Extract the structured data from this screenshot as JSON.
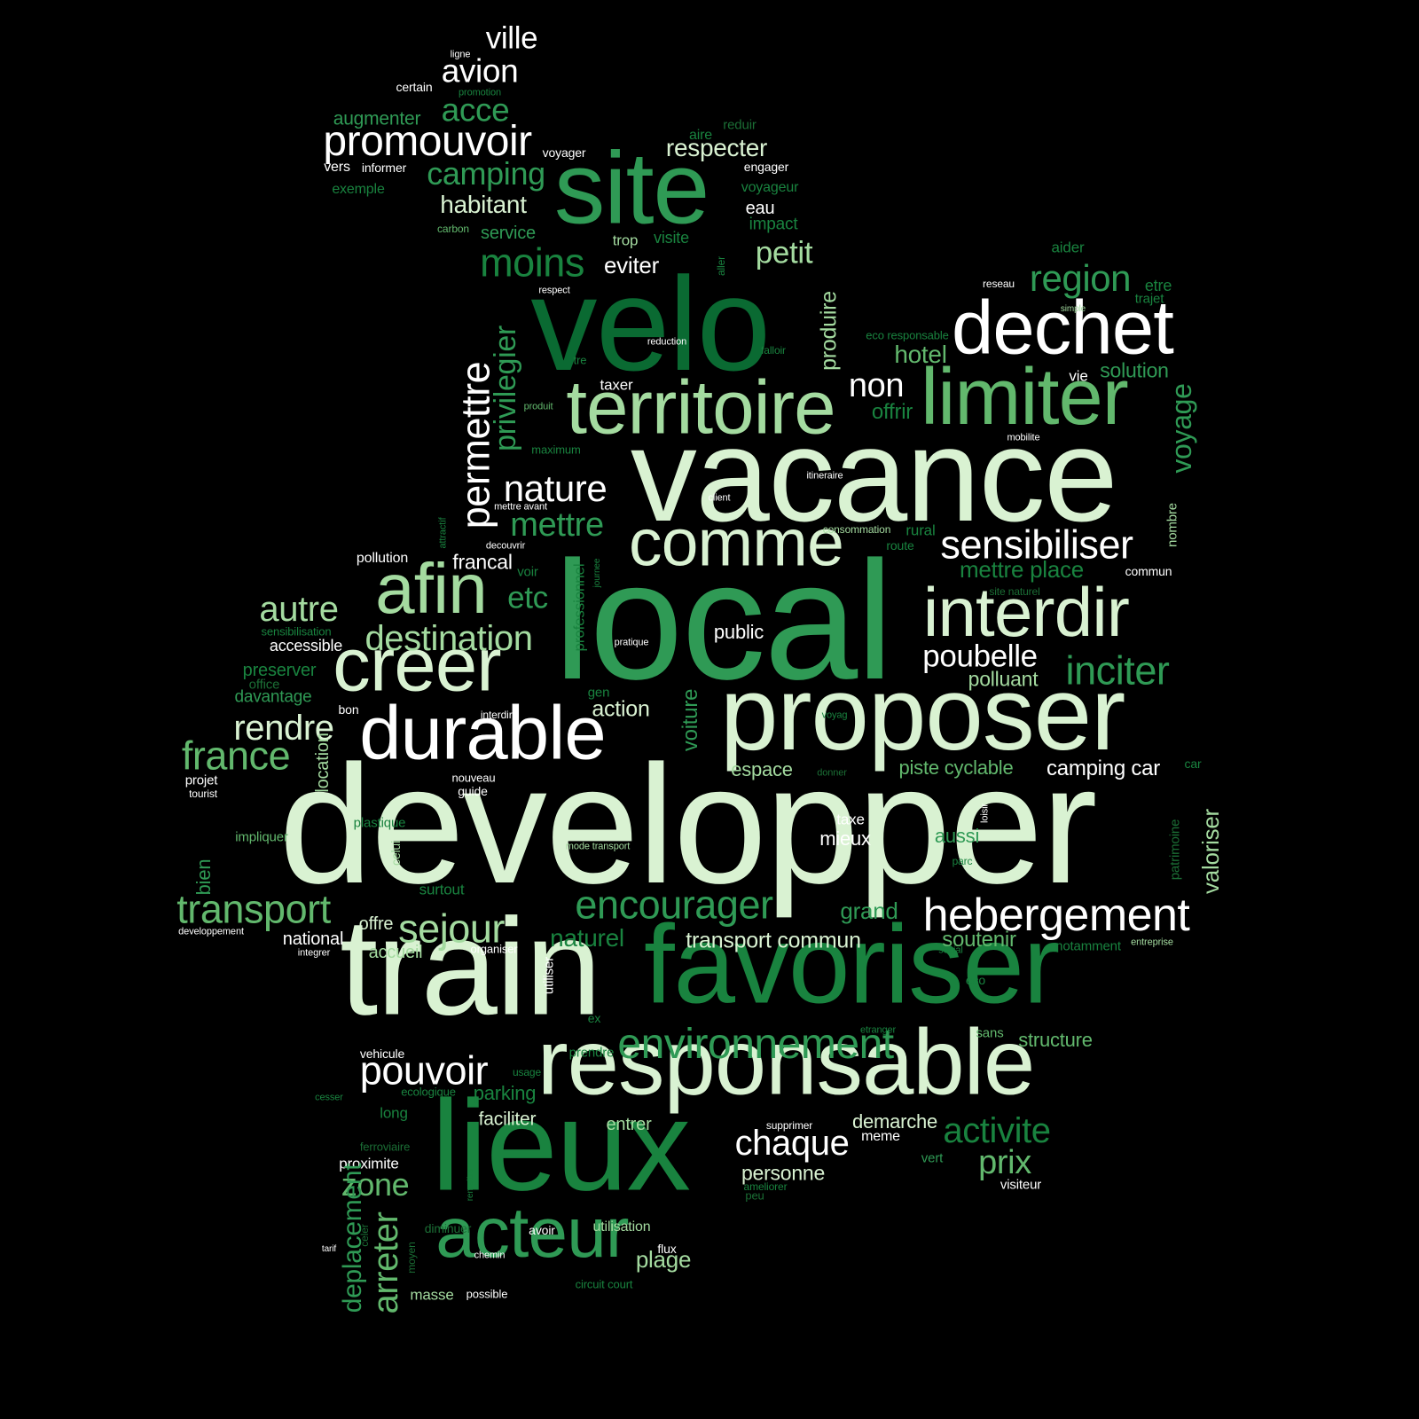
{
  "palette": [
    "#d9f2d2",
    "#ffffff",
    "#a4dba0",
    "#62b86d",
    "#2f9a55",
    "#19833f",
    "#0a6a32",
    "#1b6e35"
  ],
  "words": [
    {
      "t": "developper",
      "c": 0
    },
    {
      "t": "local",
      "c": 4
    },
    {
      "t": "vacance",
      "c": 0
    },
    {
      "t": "train",
      "c": 0
    },
    {
      "t": "velo",
      "c": 6
    },
    {
      "t": "favoriser",
      "c": 5
    },
    {
      "t": "lieux",
      "c": 5
    },
    {
      "t": "proposer",
      "c": 0
    },
    {
      "t": "responsable",
      "c": 0
    },
    {
      "t": "site",
      "c": 4
    },
    {
      "t": "dechet",
      "c": 1
    },
    {
      "t": "limiter",
      "c": 3
    },
    {
      "t": "territoire",
      "c": 2
    },
    {
      "t": "durable",
      "c": 1
    },
    {
      "t": "creer",
      "c": 0
    },
    {
      "t": "afin",
      "c": 2
    },
    {
      "t": "interdir",
      "c": 0
    },
    {
      "t": "comme",
      "c": 0
    },
    {
      "t": "acteur",
      "c": 4
    },
    {
      "t": "hebergement",
      "c": 1
    },
    {
      "t": "promouvoir",
      "c": 1
    },
    {
      "t": "environnement",
      "c": 4
    },
    {
      "t": "encourager",
      "c": 4
    },
    {
      "t": "sensibiliser",
      "c": 1
    },
    {
      "t": "pouvoir",
      "c": 1
    },
    {
      "t": "transport",
      "c": 3
    },
    {
      "t": "sejour",
      "c": 2
    },
    {
      "t": "destination",
      "c": 2
    },
    {
      "t": "inciter",
      "c": 4
    },
    {
      "t": "chaque",
      "c": 1
    },
    {
      "t": "france",
      "c": 3
    },
    {
      "t": "rendre",
      "c": 0
    },
    {
      "t": "autre",
      "c": 2
    },
    {
      "t": "moins",
      "c": 5
    },
    {
      "t": "region",
      "c": 4
    },
    {
      "t": "activite",
      "c": 5
    },
    {
      "t": "prix",
      "c": 3
    },
    {
      "t": "zone",
      "c": 3
    },
    {
      "t": "poubelle",
      "c": 1
    },
    {
      "t": "nature",
      "c": 1
    },
    {
      "t": "petit",
      "c": 2
    },
    {
      "t": "camping",
      "c": 4
    },
    {
      "t": "mettre",
      "c": 4
    },
    {
      "t": "avion",
      "c": 1
    },
    {
      "t": "acce",
      "c": 4
    },
    {
      "t": "ville",
      "c": 1
    },
    {
      "t": "non",
      "c": 1
    },
    {
      "t": "etc",
      "c": 4
    },
    {
      "t": "habitant",
      "c": 0
    },
    {
      "t": "respecter",
      "c": 0
    },
    {
      "t": "plage",
      "c": 2
    },
    {
      "t": "naturel",
      "c": 5
    },
    {
      "t": "transport commun",
      "c": 0
    },
    {
      "t": "hotel",
      "c": 3
    },
    {
      "t": "mettre place",
      "c": 5
    },
    {
      "t": "camping car",
      "c": 1
    },
    {
      "t": "personne",
      "c": 0
    },
    {
      "t": "grand",
      "c": 4
    },
    {
      "t": "soutenir",
      "c": 3
    },
    {
      "t": "structure",
      "c": 3
    },
    {
      "t": "demarche",
      "c": 0
    },
    {
      "t": "eviter",
      "c": 1
    },
    {
      "t": "solution",
      "c": 4
    },
    {
      "t": "action",
      "c": 0
    },
    {
      "t": "polluant",
      "c": 2
    },
    {
      "t": "piste cyclable",
      "c": 3
    },
    {
      "t": "espace",
      "c": 2
    },
    {
      "t": "mieux",
      "c": 1
    },
    {
      "t": "public",
      "c": 1
    },
    {
      "t": "francal",
      "c": 1
    },
    {
      "t": "faciliter",
      "c": 0
    },
    {
      "t": "entrer",
      "c": 2
    },
    {
      "t": "offrir",
      "c": 5
    },
    {
      "t": "parking",
      "c": 5
    },
    {
      "t": "augmenter",
      "c": 4
    },
    {
      "t": "aussi",
      "c": 4
    },
    {
      "t": "accueil",
      "c": 2
    },
    {
      "t": "offre",
      "c": 0
    },
    {
      "t": "national",
      "c": 1
    },
    {
      "t": "davantage",
      "c": 4
    },
    {
      "t": "accessible",
      "c": 1
    },
    {
      "t": "preserver",
      "c": 5
    },
    {
      "t": "service",
      "c": 4
    },
    {
      "t": "eau",
      "c": 1
    },
    {
      "t": "impact",
      "c": 5
    },
    {
      "t": "voyageur",
      "c": 5
    },
    {
      "t": "trop",
      "c": 2
    },
    {
      "t": "visite",
      "c": 5
    },
    {
      "t": "aider",
      "c": 5
    },
    {
      "t": "etre",
      "c": 5
    },
    {
      "t": "trajet",
      "c": 5
    },
    {
      "t": "vie",
      "c": 1
    },
    {
      "t": "taxer",
      "c": 1
    },
    {
      "t": "taxe",
      "c": 1
    },
    {
      "t": "rural",
      "c": 5
    },
    {
      "t": "route",
      "c": 5
    },
    {
      "t": "commun",
      "c": 1
    },
    {
      "t": "surtout",
      "c": 5
    },
    {
      "t": "proximite",
      "c": 1
    },
    {
      "t": "long",
      "c": 5
    },
    {
      "t": "masse",
      "c": 2
    },
    {
      "t": "utilisation",
      "c": 2
    },
    {
      "t": "avoir",
      "c": 1
    },
    {
      "t": "flux",
      "c": 1
    },
    {
      "t": "meme",
      "c": 1
    },
    {
      "t": "vert",
      "c": 4
    },
    {
      "t": "visiteur",
      "c": 1
    },
    {
      "t": "sans",
      "c": 3
    },
    {
      "t": "eco",
      "c": 5
    },
    {
      "t": "notamment",
      "c": 5
    },
    {
      "t": "prendre",
      "c": 5
    },
    {
      "t": "vehicule",
      "c": 1
    },
    {
      "t": "guide",
      "c": 1
    },
    {
      "t": "nouveau",
      "c": 1
    },
    {
      "t": "projet",
      "c": 1
    },
    {
      "t": "impliquer",
      "c": 3
    },
    {
      "t": "vers",
      "c": 1
    },
    {
      "t": "informer",
      "c": 1
    },
    {
      "t": "voyager",
      "c": 1
    },
    {
      "t": "engager",
      "c": 1
    },
    {
      "t": "aire",
      "c": 5
    },
    {
      "t": "reduir",
      "c": 7
    },
    {
      "t": "exemple",
      "c": 5
    },
    {
      "t": "certain",
      "c": 1
    },
    {
      "t": "pollution",
      "c": 1
    },
    {
      "t": "voir",
      "c": 5
    },
    {
      "t": "gen",
      "c": 5
    },
    {
      "t": "bon",
      "c": 1
    },
    {
      "t": "office",
      "c": 7
    },
    {
      "t": "sensibilisation",
      "c": 5
    },
    {
      "t": "interdire",
      "c": 1
    },
    {
      "t": "ligne",
      "c": 1
    },
    {
      "t": "promotion",
      "c": 5
    },
    {
      "t": "carbon",
      "c": 3
    },
    {
      "t": "respect",
      "c": 1
    },
    {
      "t": "tre",
      "c": 5
    },
    {
      "t": "produit",
      "c": 3
    },
    {
      "t": "maximum",
      "c": 5
    },
    {
      "t": "mettre avant",
      "c": 1
    },
    {
      "t": "decouvrir",
      "c": 1
    },
    {
      "t": "reduction",
      "c": 1
    },
    {
      "t": "falloir",
      "c": 5
    },
    {
      "t": "eco responsable",
      "c": 5
    },
    {
      "t": "reseau",
      "c": 1
    },
    {
      "t": "simple",
      "c": 2
    },
    {
      "t": "mobilite",
      "c": 1
    },
    {
      "t": "itineraire",
      "c": 1
    },
    {
      "t": "client",
      "c": 1
    },
    {
      "t": "consommation",
      "c": 2
    },
    {
      "t": "site naturel",
      "c": 7
    },
    {
      "t": "pratique",
      "c": 1
    },
    {
      "t": "voyag",
      "c": 5
    },
    {
      "t": "donner",
      "c": 7
    },
    {
      "t": "car",
      "c": 5
    },
    {
      "t": "mode transport",
      "c": 2
    },
    {
      "t": "parc",
      "c": 5
    },
    {
      "t": "plastique",
      "c": 5
    },
    {
      "t": "tourist",
      "c": 1
    },
    {
      "t": "developpement",
      "c": 1
    },
    {
      "t": "organiser",
      "c": 1
    },
    {
      "t": "integrer",
      "c": 1
    },
    {
      "t": "social",
      "c": 5
    },
    {
      "t": "entreprise",
      "c": 2
    },
    {
      "t": "etranger",
      "c": 5
    },
    {
      "t": "ex",
      "c": 5
    },
    {
      "t": "usage",
      "c": 5
    },
    {
      "t": "ecologique",
      "c": 5
    },
    {
      "t": "cesser",
      "c": 5
    },
    {
      "t": "supprimer",
      "c": 1
    },
    {
      "t": "ameliorer",
      "c": 5
    },
    {
      "t": "peu",
      "c": 7
    },
    {
      "t": "ferroviaire",
      "c": 7
    },
    {
      "t": "diminuer",
      "c": 7
    },
    {
      "t": "tarif",
      "c": 1
    },
    {
      "t": "chemin",
      "c": 1
    },
    {
      "t": "possible",
      "c": 1
    },
    {
      "t": "circuit court",
      "c": 5
    },
    {
      "t": "permettre",
      "c": 1
    },
    {
      "t": "privilegier",
      "c": 4
    },
    {
      "t": "produire",
      "c": 2
    },
    {
      "t": "voyage",
      "c": 4
    },
    {
      "t": "voiture",
      "c": 4
    },
    {
      "t": "valoriser",
      "c": 2
    },
    {
      "t": "deplacement",
      "c": 4
    },
    {
      "t": "arreter",
      "c": 3
    },
    {
      "t": "location",
      "c": 2
    },
    {
      "t": "bien",
      "c": 4
    },
    {
      "t": "professionnel",
      "c": 5
    },
    {
      "t": "nombre",
      "c": 2
    },
    {
      "t": "patrimoine",
      "c": 7
    },
    {
      "t": "celui",
      "c": 2
    },
    {
      "t": "utiliser",
      "c": 1
    },
    {
      "t": "attractif",
      "c": 5
    },
    {
      "t": "journee",
      "c": 5
    },
    {
      "t": "aller",
      "c": 5
    },
    {
      "t": "loisir",
      "c": 1
    },
    {
      "t": "remettre",
      "c": 5
    },
    {
      "t": "moyen",
      "c": 7
    },
    {
      "t": "celer",
      "c": 7
    }
  ]
}
